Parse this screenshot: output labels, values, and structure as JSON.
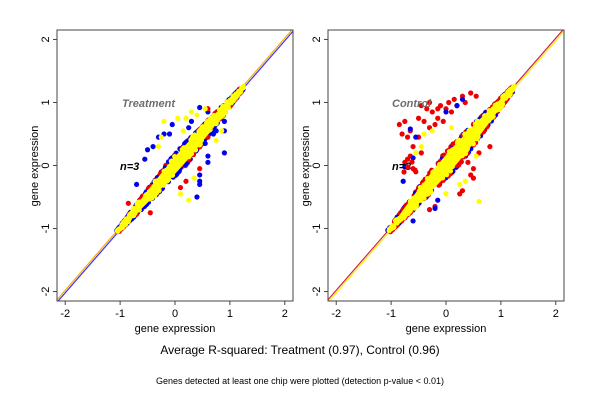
{
  "chart_data": [
    {
      "type": "scatter",
      "panel": "Treatment",
      "title": "Treatment",
      "annotation": "n=3",
      "xlabel": "gene expression",
      "ylabel": "gene expression",
      "xlim": [
        -2.15,
        2.15
      ],
      "ylim": [
        -2.15,
        2.15
      ],
      "xticks": [
        -2,
        -1,
        0,
        1,
        2
      ],
      "yticks": [
        -2,
        -1,
        0,
        1,
        2
      ],
      "reference_lines": [
        {
          "name": "identity-blue",
          "color": "#3333ff",
          "slope": 1,
          "intercept": -0.02
        },
        {
          "name": "identity-orange",
          "color": "#ffaa00",
          "slope": 1,
          "intercept": 0.02
        }
      ],
      "cloud": {
        "x_range": [
          -1.05,
          1.25
        ],
        "spread": 0.14
      },
      "series": [
        {
          "name": "blue-points",
          "color": "#0000ee",
          "points": [
            [
              0.45,
              0.92
            ],
            [
              0.9,
              0.7
            ],
            [
              0.9,
              0.55
            ],
            [
              0.9,
              0.2
            ],
            [
              0.6,
              0.15
            ],
            [
              0.6,
              0.05
            ],
            [
              0.45,
              -0.15
            ],
            [
              0.45,
              -0.3
            ],
            [
              0.45,
              -0.25
            ],
            [
              0.4,
              -0.5
            ],
            [
              0.7,
              0.5
            ],
            [
              0.55,
              0.35
            ],
            [
              -0.4,
              0.3
            ],
            [
              -0.3,
              0.45
            ],
            [
              -0.05,
              0.65
            ],
            [
              -0.5,
              0.25
            ],
            [
              -0.55,
              0.1
            ],
            [
              -0.7,
              -0.3
            ],
            [
              0.25,
              0.6
            ],
            [
              0.3,
              0.7
            ],
            [
              -0.2,
              0.5
            ],
            [
              -0.1,
              0.5
            ],
            [
              0.6,
              0.85
            ],
            [
              0.75,
              0.55
            ]
          ]
        },
        {
          "name": "red-points",
          "color": "#ee0000",
          "points": [
            [
              0.2,
              -0.25
            ],
            [
              0.45,
              -0.05
            ],
            [
              -1.05,
              -1.05
            ],
            [
              -0.45,
              -0.75
            ],
            [
              0.6,
              0.45
            ],
            [
              0.6,
              0.9
            ],
            [
              -0.85,
              -0.6
            ],
            [
              0.25,
              0.1
            ],
            [
              0.1,
              -0.35
            ]
          ]
        },
        {
          "name": "yellow-outliers",
          "color": "#ffff00",
          "points": [
            [
              0.25,
              -0.55
            ],
            [
              0.1,
              -0.45
            ],
            [
              -0.2,
              0.7
            ],
            [
              -0.25,
              0.45
            ],
            [
              0.3,
              0.85
            ],
            [
              0.4,
              0.8
            ],
            [
              0.75,
              0.4
            ],
            [
              0.85,
              0.55
            ],
            [
              0.55,
              0.9
            ],
            [
              0.35,
              -0.2
            ],
            [
              0.2,
              0.75
            ],
            [
              0.05,
              0.75
            ],
            [
              0.65,
              0.75
            ],
            [
              -0.3,
              0.3
            ],
            [
              0.15,
              0.55
            ]
          ]
        }
      ]
    },
    {
      "type": "scatter",
      "panel": "Control",
      "title": "Control",
      "annotation": "n=3",
      "xlabel": "gene expression",
      "ylabel": "gene expression",
      "xlim": [
        -2.15,
        2.15
      ],
      "ylim": [
        -2.15,
        2.15
      ],
      "xticks": [
        -2,
        -1,
        0,
        1,
        2
      ],
      "yticks": [
        -2,
        -1,
        0,
        1,
        2
      ],
      "reference_lines": [
        {
          "name": "identity-red",
          "color": "#cc2244",
          "slope": 1,
          "intercept": 0.02
        },
        {
          "name": "identity-yellow",
          "color": "#ffee00",
          "slope": 1,
          "intercept": -0.02
        }
      ],
      "cloud": {
        "x_range": [
          -1.05,
          1.25
        ],
        "spread": 0.17
      },
      "series": [
        {
          "name": "red-points",
          "color": "#ee0000",
          "points": [
            [
              -0.75,
              0.7
            ],
            [
              -0.85,
              0.65
            ],
            [
              -0.65,
              0.55
            ],
            [
              -0.7,
              0.45
            ],
            [
              -0.5,
              0.75
            ],
            [
              -0.4,
              0.7
            ],
            [
              -0.35,
              0.9
            ],
            [
              -0.45,
              0.95
            ],
            [
              -0.25,
              0.85
            ],
            [
              -0.15,
              0.9
            ],
            [
              -0.1,
              0.95
            ],
            [
              0.05,
              1.0
            ],
            [
              0.15,
              1.05
            ],
            [
              0.3,
              1.1
            ],
            [
              0.45,
              1.15
            ],
            [
              0.55,
              1.1
            ],
            [
              -0.6,
              0.3
            ],
            [
              -0.65,
              0.15
            ],
            [
              -0.75,
              0.05
            ],
            [
              -0.7,
              0.1
            ],
            [
              -0.5,
              0.45
            ],
            [
              -0.3,
              0.6
            ],
            [
              -0.2,
              0.65
            ],
            [
              -0.05,
              0.7
            ],
            [
              0.1,
              0.85
            ],
            [
              0.2,
              0.95
            ],
            [
              0.35,
              1.0
            ],
            [
              -0.55,
              -0.1
            ],
            [
              -0.6,
              -0.05
            ],
            [
              0.45,
              -0.15
            ],
            [
              0.5,
              -0.05
            ],
            [
              0.5,
              -0.2
            ],
            [
              0.3,
              -0.4
            ],
            [
              0.25,
              -0.45
            ],
            [
              -0.3,
              -0.7
            ],
            [
              -0.2,
              -0.65
            ],
            [
              0.8,
              0.3
            ],
            [
              0.6,
              0.2
            ],
            [
              -0.15,
              0.75
            ],
            [
              0.0,
              0.9
            ],
            [
              -0.3,
              1.0
            ],
            [
              -0.8,
              0.5
            ],
            [
              -0.45,
              0.2
            ],
            [
              0.4,
              0.05
            ]
          ]
        },
        {
          "name": "blue-points",
          "color": "#0000ee",
          "points": [
            [
              -0.65,
              0.58
            ],
            [
              -0.6,
              0.12
            ],
            [
              -0.75,
              -0.02
            ],
            [
              -0.78,
              -0.25
            ],
            [
              -0.55,
              0.45
            ],
            [
              0.2,
              0.95
            ],
            [
              -0.15,
              -0.55
            ],
            [
              -0.2,
              -0.68
            ],
            [
              -0.6,
              -0.88
            ],
            [
              0.0,
              0.85
            ],
            [
              0.3,
              1.05
            ]
          ]
        },
        {
          "name": "yellow-outliers",
          "color": "#ffff00",
          "points": [
            [
              0.6,
              -0.57
            ],
            [
              -0.4,
              0.5
            ],
            [
              -0.25,
              0.55
            ],
            [
              0.1,
              0.6
            ],
            [
              0.35,
              -0.25
            ],
            [
              0.25,
              -0.3
            ],
            [
              0.55,
              0.15
            ],
            [
              -0.55,
              0.2
            ],
            [
              -0.45,
              0.3
            ],
            [
              0.0,
              -0.45
            ]
          ]
        }
      ]
    }
  ],
  "footer": {
    "summary": "Average R-squared: Treatment (0.97), Control (0.96)",
    "note": "Genes detected at least one chip were plotted (detection p-value < 0.01)"
  }
}
